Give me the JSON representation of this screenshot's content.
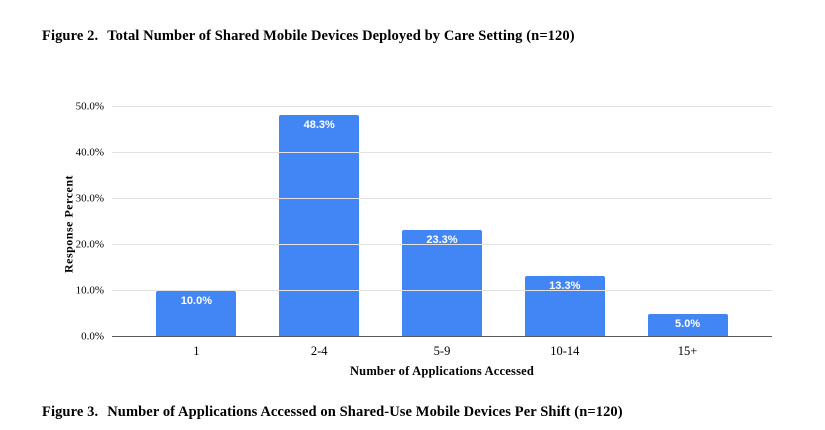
{
  "figure2_caption": {
    "label": "Figure 2.",
    "text": "Total Number of Shared Mobile Devices Deployed by Care Setting (n=120)"
  },
  "figure3_caption": {
    "label": "Figure 3.",
    "text": "Number of Applications Accessed on Shared-Use Mobile Devices Per Shift (n=120)"
  },
  "chart_data": {
    "type": "bar",
    "title": "",
    "categories": [
      "1",
      "2-4",
      "5-9",
      "10-14",
      "15+"
    ],
    "values": [
      10.0,
      48.3,
      23.3,
      13.3,
      5.0
    ],
    "value_labels": [
      "10.0%",
      "48.3%",
      "23.3%",
      "13.3%",
      "5.0%"
    ],
    "xlabel": "Number of Applications Accessed",
    "ylabel": "Response Percent",
    "ylim": [
      0,
      50
    ],
    "yticks": [
      {
        "value": 0,
        "label": "0.0%"
      },
      {
        "value": 10,
        "label": "10.0%"
      },
      {
        "value": 20,
        "label": "20.0%"
      },
      {
        "value": 30,
        "label": "30.0%"
      },
      {
        "value": 40,
        "label": "40.0%"
      },
      {
        "value": 50,
        "label": "50.0%"
      }
    ],
    "grid": true,
    "legend": "none",
    "colors": {
      "bar": "#4285f4",
      "bar_label": "#ffffff",
      "gridline": "#e2e2e2",
      "axis_line": "#5a5a5a",
      "text": "#000000"
    }
  }
}
